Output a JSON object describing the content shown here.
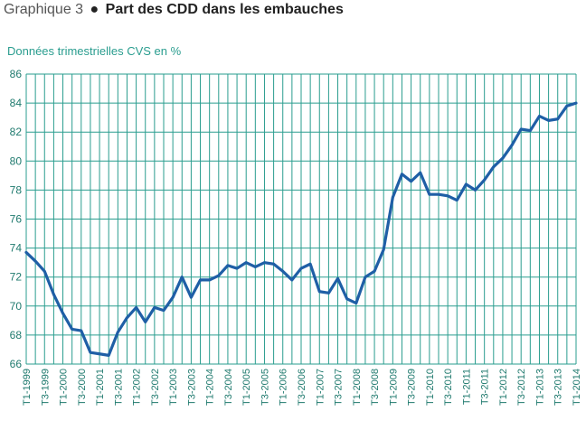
{
  "chart_data": {
    "type": "line",
    "title_prefix": "Graphique 3",
    "title_bullet": "●",
    "title": "Part des CDD dans les embauches",
    "subtitle": "Données trimestrielles CVS en %",
    "ylim": [
      66,
      86
    ],
    "yticks": [
      66,
      68,
      70,
      72,
      74,
      76,
      78,
      80,
      82,
      84,
      86
    ],
    "xtick_labels": [
      "T1-1999",
      "T3-1999",
      "T1-2000",
      "T3-2000",
      "T1-2001",
      "T3-2001",
      "T1-2002",
      "T3-2002",
      "T1-2003",
      "T3-2003",
      "T1-2004",
      "T3-2004",
      "T1-2005",
      "T3-2005",
      "T1-2006",
      "T3-2006",
      "T1-2007",
      "T3-2007",
      "T1-2008",
      "T3-2008",
      "T1-2009",
      "T3-2009",
      "T1-2010",
      "T3-2010",
      "T1-2011",
      "T3-2011",
      "T1-2012",
      "T3-2012",
      "T1-2013",
      "T3-2013",
      "T1-2014"
    ],
    "grid": true,
    "colors": {
      "line": "#1f5fa6",
      "grid": "#2a9d8f",
      "axis_text": "#1f7a6e"
    },
    "series": [
      {
        "name": "Part des CDD",
        "values": [
          73.7,
          73.1,
          72.4,
          70.8,
          69.5,
          68.4,
          68.3,
          66.8,
          66.7,
          66.6,
          68.2,
          69.2,
          69.9,
          68.9,
          69.9,
          69.7,
          70.6,
          72.0,
          70.6,
          71.8,
          71.8,
          72.1,
          72.8,
          72.6,
          73.0,
          72.7,
          73.0,
          72.9,
          72.4,
          71.8,
          72.6,
          72.9,
          71.0,
          70.9,
          71.9,
          70.5,
          70.2,
          72.0,
          72.4,
          73.9,
          77.5,
          79.1,
          78.6,
          79.2,
          77.7,
          77.7,
          77.6,
          77.3,
          78.4,
          78.0,
          78.7,
          79.6,
          80.2,
          81.1,
          82.2,
          82.1,
          83.1,
          82.8,
          82.9,
          83.8,
          84.0
        ]
      }
    ]
  }
}
